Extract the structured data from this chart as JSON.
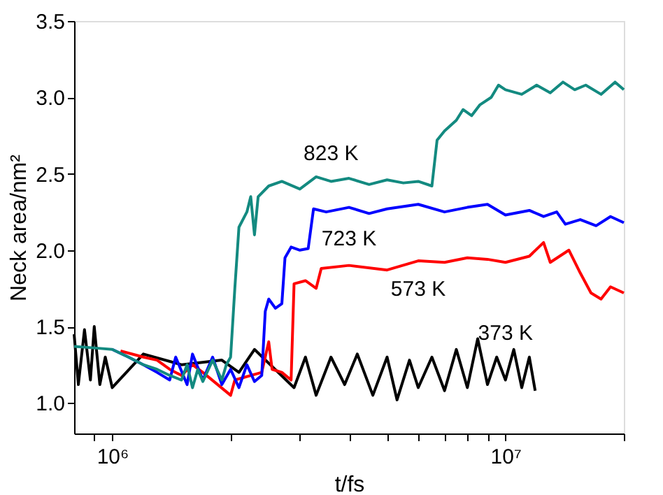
{
  "chart_data": {
    "type": "line",
    "xlabel": "t/fs",
    "ylabel": "Neck area/nm²",
    "log": "x",
    "grid": false,
    "xlim": [
      800000,
      20000000
    ],
    "ylim": [
      0.8,
      3.5
    ],
    "xticks": [
      {
        "value": 900000,
        "label": null
      },
      {
        "value": 1000000,
        "label": "10⁶"
      },
      {
        "value": 2000000,
        "label": null
      },
      {
        "value": 3000000,
        "label": null
      },
      {
        "value": 4000000,
        "label": null
      },
      {
        "value": 5000000,
        "label": null
      },
      {
        "value": 6000000,
        "label": null
      },
      {
        "value": 7000000,
        "label": null
      },
      {
        "value": 8000000,
        "label": null
      },
      {
        "value": 9000000,
        "label": null
      },
      {
        "value": 10000000,
        "label": "10⁷"
      },
      {
        "value": 20000000,
        "label": null
      }
    ],
    "yticks": [
      {
        "value": 1.0,
        "label": "1.0"
      },
      {
        "value": 1.5,
        "label": "1.5"
      },
      {
        "value": 2.0,
        "label": "2.0"
      },
      {
        "value": 2.5,
        "label": "2.5"
      },
      {
        "value": 3.0,
        "label": "3.0"
      },
      {
        "value": 3.5,
        "label": "3.5"
      }
    ],
    "series": [
      {
        "name": "373 K",
        "color": "#000000",
        "x": [
          800000,
          820000,
          850000,
          880000,
          900000,
          930000,
          960000,
          1000000,
          1200000,
          1500000,
          1900000,
          2100000,
          2300000,
          2900000,
          3100000,
          3300000,
          3600000,
          3900000,
          4200000,
          4600000,
          5000000,
          5300000,
          5700000,
          6000000,
          6500000,
          7000000,
          7500000,
          8000000,
          8500000,
          9000000,
          9500000,
          10000000,
          10500000,
          11000000,
          11500000,
          11900000
        ],
        "values": [
          1.45,
          1.12,
          1.48,
          1.15,
          1.5,
          1.12,
          1.3,
          1.1,
          1.32,
          1.25,
          1.28,
          1.2,
          1.35,
          1.1,
          1.3,
          1.05,
          1.3,
          1.12,
          1.32,
          1.05,
          1.3,
          1.02,
          1.28,
          1.1,
          1.3,
          1.08,
          1.35,
          1.1,
          1.42,
          1.12,
          1.3,
          1.15,
          1.35,
          1.1,
          1.3,
          1.08
        ]
      },
      {
        "name": "573 K",
        "color": "#ff0000",
        "x": [
          1050000,
          1200000,
          1300000,
          1400000,
          1500000,
          1600000,
          1700000,
          2000000,
          2050000,
          2400000,
          2500000,
          2550000,
          2700000,
          2850000,
          2900000,
          3100000,
          3300000,
          3400000,
          4000000,
          5000000,
          6000000,
          7000000,
          8000000,
          9000000,
          10000000,
          11500000,
          12500000,
          13000000,
          14500000,
          15500000,
          16500000,
          17500000,
          18500000,
          20000000
        ],
        "values": [
          1.34,
          1.3,
          1.28,
          1.22,
          1.18,
          1.25,
          1.2,
          1.05,
          1.15,
          1.2,
          1.4,
          1.22,
          1.2,
          1.15,
          1.78,
          1.8,
          1.75,
          1.88,
          1.9,
          1.87,
          1.93,
          1.92,
          1.95,
          1.94,
          1.92,
          1.96,
          2.05,
          1.92,
          2.0,
          1.85,
          1.72,
          1.68,
          1.76,
          1.72
        ]
      },
      {
        "name": "723 K",
        "color": "#0000ff",
        "x": [
          1000000,
          1100000,
          1200000,
          1300000,
          1400000,
          1450000,
          1550000,
          1600000,
          1700000,
          1800000,
          1900000,
          2000000,
          2100000,
          2200000,
          2300000,
          2400000,
          2450000,
          2500000,
          2600000,
          2700000,
          2750000,
          2850000,
          3000000,
          3150000,
          3250000,
          3500000,
          4000000,
          4500000,
          5000000,
          6000000,
          7000000,
          8000000,
          9000000,
          10000000,
          11500000,
          12500000,
          13500000,
          14200000,
          15500000,
          17000000,
          18500000,
          20000000
        ],
        "values": [
          1.35,
          1.3,
          1.25,
          1.2,
          1.15,
          1.3,
          1.12,
          1.32,
          1.15,
          1.3,
          1.12,
          1.22,
          1.1,
          1.25,
          1.14,
          1.18,
          1.6,
          1.68,
          1.62,
          1.65,
          1.95,
          2.02,
          2.0,
          2.01,
          2.27,
          2.25,
          2.28,
          2.24,
          2.27,
          2.3,
          2.25,
          2.28,
          2.3,
          2.23,
          2.26,
          2.22,
          2.25,
          2.17,
          2.2,
          2.16,
          2.22,
          2.18
        ]
      },
      {
        "name": "823 K",
        "color": "#138a80",
        "x": [
          800000,
          900000,
          1000000,
          1100000,
          1200000,
          1300000,
          1400000,
          1500000,
          1550000,
          1600000,
          1650000,
          1700000,
          1800000,
          1900000,
          1950000,
          2000000,
          2050000,
          2100000,
          2200000,
          2250000,
          2300000,
          2350000,
          2500000,
          2700000,
          3000000,
          3300000,
          3600000,
          4000000,
          4500000,
          5000000,
          5500000,
          6000000,
          6500000,
          6700000,
          7000000,
          7500000,
          7800000,
          8200000,
          8600000,
          9200000,
          9600000,
          10000000,
          11000000,
          12000000,
          13000000,
          14000000,
          15000000,
          16000000,
          17500000,
          19000000,
          20000000
        ],
        "values": [
          1.37,
          1.36,
          1.35,
          1.3,
          1.25,
          1.22,
          1.18,
          1.15,
          1.25,
          1.1,
          1.22,
          1.14,
          1.28,
          1.15,
          1.25,
          1.3,
          1.75,
          2.15,
          2.25,
          2.35,
          2.1,
          2.35,
          2.42,
          2.45,
          2.4,
          2.48,
          2.45,
          2.47,
          2.43,
          2.46,
          2.44,
          2.45,
          2.42,
          2.72,
          2.78,
          2.85,
          2.92,
          2.88,
          2.95,
          3.0,
          3.08,
          3.05,
          3.02,
          3.08,
          3.03,
          3.1,
          3.05,
          3.08,
          3.02,
          3.1,
          3.05
        ]
      }
    ]
  }
}
